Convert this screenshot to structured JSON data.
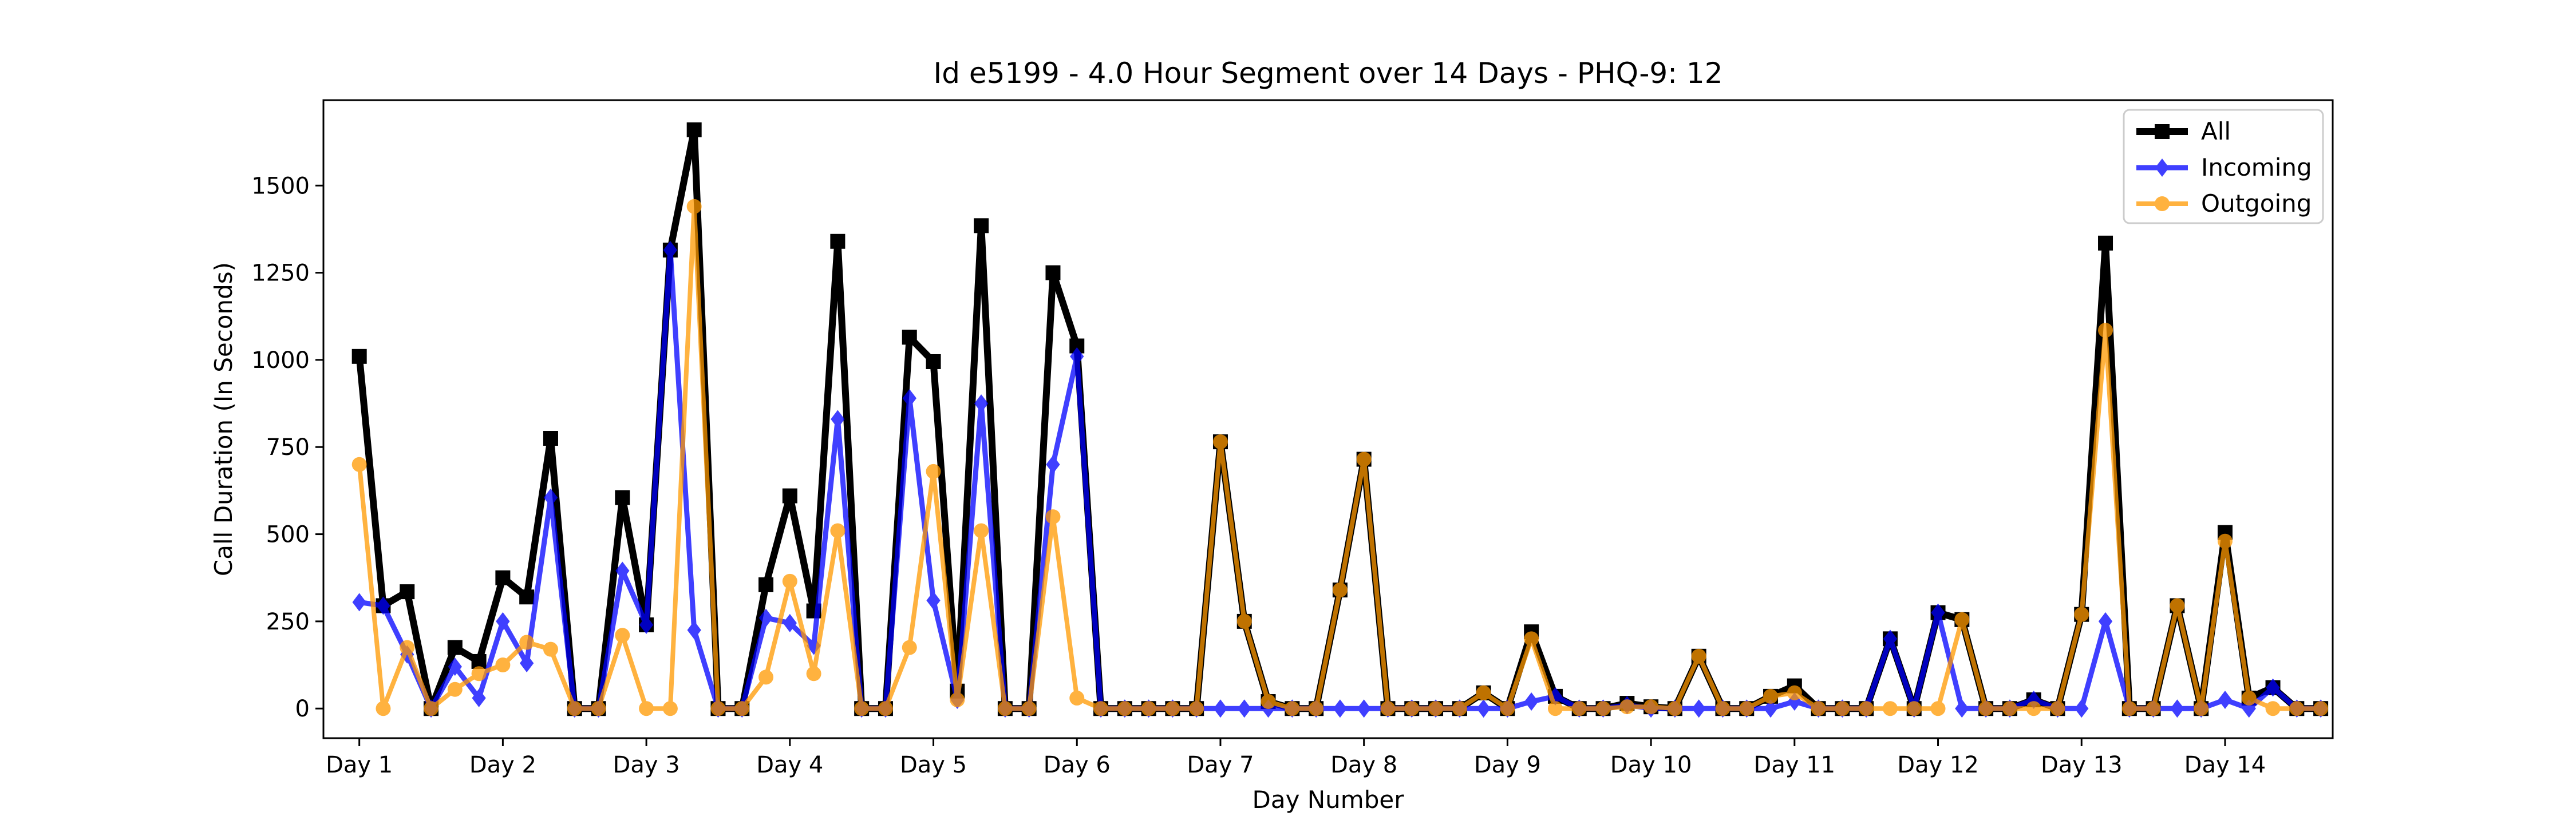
{
  "chart_data": {
    "type": "line",
    "title": "Id e5199 - 4.0 Hour Segment over 14 Days - PHQ-9: 12",
    "xlabel": "Day Number",
    "ylabel": "Call Duration (In Seconds)",
    "ylim": [
      -85,
      1745
    ],
    "yticks": [
      0,
      250,
      500,
      750,
      1000,
      1250,
      1500
    ],
    "xlim": [
      -1.5,
      82.5
    ],
    "x_tick_labels": [
      "Day 1",
      "Day 2",
      "Day 3",
      "Day 4",
      "Day 5",
      "Day 6",
      "Day 7",
      "Day 8",
      "Day 9",
      "Day 10",
      "Day 11",
      "Day 12",
      "Day 13",
      "Day 14"
    ],
    "x_tick_positions": [
      0,
      6,
      12,
      18,
      24,
      30,
      36,
      42,
      48,
      54,
      60,
      66,
      72,
      78
    ],
    "legend_position": "top-right",
    "grid": false,
    "series": [
      {
        "name": "All",
        "color": "#000000",
        "marker": "square",
        "values": [
          1010,
          295,
          335,
          0,
          175,
          135,
          375,
          320,
          775,
          0,
          0,
          605,
          240,
          1315,
          1660,
          0,
          0,
          355,
          610,
          280,
          1340,
          0,
          0,
          1065,
          995,
          50,
          1385,
          0,
          0,
          1250,
          1040,
          0,
          0,
          0,
          0,
          0,
          765,
          250,
          20,
          0,
          0,
          340,
          715,
          0,
          0,
          0,
          0,
          45,
          0,
          220,
          35,
          0,
          0,
          15,
          5,
          0,
          150,
          0,
          0,
          35,
          65,
          0,
          0,
          0,
          200,
          0,
          275,
          255,
          0,
          0,
          25,
          0,
          270,
          1335,
          0,
          0,
          295,
          0,
          505,
          30,
          60,
          0,
          0
        ]
      },
      {
        "name": "Incoming",
        "color": "#0000ff",
        "marker": "diamond",
        "values": [
          305,
          295,
          155,
          0,
          120,
          30,
          250,
          130,
          605,
          0,
          0,
          395,
          240,
          1315,
          225,
          0,
          0,
          260,
          245,
          180,
          830,
          0,
          0,
          890,
          310,
          25,
          875,
          0,
          0,
          700,
          1010,
          0,
          0,
          0,
          0,
          0,
          0,
          0,
          0,
          0,
          0,
          0,
          0,
          0,
          0,
          0,
          0,
          0,
          0,
          20,
          35,
          0,
          0,
          10,
          0,
          0,
          0,
          0,
          0,
          0,
          20,
          0,
          0,
          0,
          200,
          0,
          275,
          0,
          0,
          0,
          25,
          0,
          0,
          250,
          0,
          0,
          0,
          0,
          25,
          0,
          60,
          0,
          0
        ]
      },
      {
        "name": "Outgoing",
        "color": "#ff9900",
        "marker": "circle",
        "values": [
          700,
          0,
          175,
          0,
          55,
          100,
          125,
          190,
          170,
          0,
          0,
          210,
          0,
          0,
          1440,
          0,
          0,
          90,
          365,
          100,
          510,
          0,
          0,
          175,
          680,
          25,
          510,
          0,
          0,
          550,
          30,
          0,
          0,
          0,
          0,
          0,
          765,
          250,
          20,
          0,
          0,
          340,
          715,
          0,
          0,
          0,
          0,
          45,
          0,
          200,
          0,
          0,
          0,
          5,
          5,
          0,
          150,
          0,
          0,
          35,
          45,
          0,
          0,
          0,
          0,
          0,
          0,
          255,
          0,
          0,
          0,
          0,
          270,
          1085,
          0,
          0,
          295,
          0,
          480,
          30,
          0,
          0,
          0
        ]
      }
    ]
  }
}
